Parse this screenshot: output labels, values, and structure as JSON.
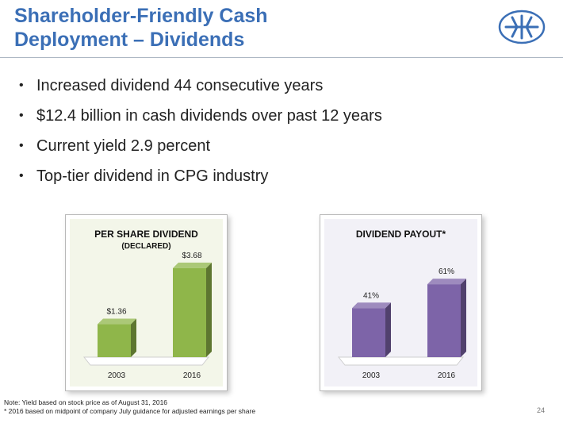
{
  "title_lines": [
    "Shareholder-Friendly Cash",
    "Deployment – Dividends"
  ],
  "bullets": [
    "Increased dividend 44 consecutive years",
    "$12.4 billion in cash dividends over past 12 years",
    "Current yield 2.9 percent",
    "Top-tier dividend in CPG industry"
  ],
  "colors": {
    "title": "#3b6fb6",
    "green_bar": "#8fb64a",
    "purple_bar": "#7d64a8"
  },
  "logo_icon": "snowflake-logo-icon",
  "chart_data": [
    {
      "type": "bar",
      "title": "PER SHARE DIVIDEND",
      "subtitle": "(DECLARED)",
      "categories": [
        "2003",
        "2016"
      ],
      "values": [
        1.36,
        3.68
      ],
      "labels": [
        "$1.36",
        "$3.68"
      ],
      "ylim": [
        0,
        4.2
      ],
      "grid": false,
      "color": "#8fb64a"
    },
    {
      "type": "bar",
      "title": "DIVIDEND PAYOUT*",
      "subtitle": "",
      "categories": [
        "2003",
        "2016"
      ],
      "values": [
        41,
        61
      ],
      "labels": [
        "41%",
        "61%"
      ],
      "ylim": [
        0,
        85
      ],
      "grid": false,
      "color": "#7d64a8"
    }
  ],
  "footnotes": [
    "Note: Yield based on stock price as of August 31, 2016",
    "* 2016 based on midpoint of company July guidance for adjusted earnings per share"
  ],
  "page_number": "24"
}
